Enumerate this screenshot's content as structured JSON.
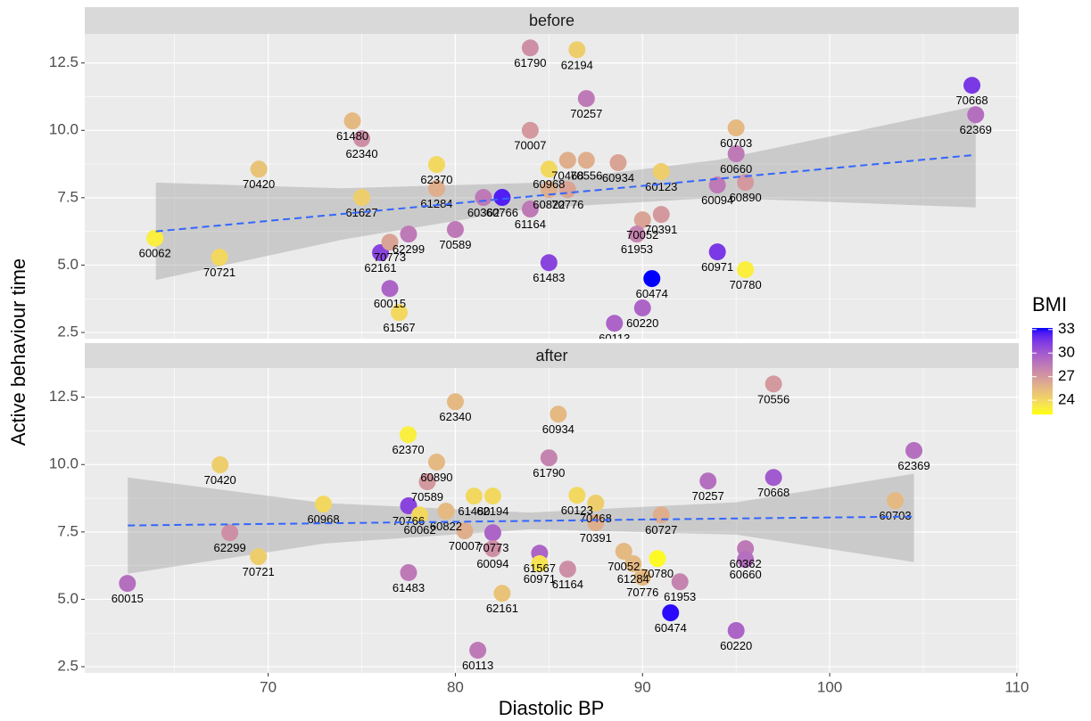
{
  "chart_data": {
    "type": "scatter",
    "x_label": "Diastolic BP",
    "y_label": "Active behaviour time",
    "xlim": [
      60.2,
      110.1
    ],
    "ylim": [
      2.27,
      13.58
    ],
    "xticks": [
      70,
      80,
      90,
      100,
      110
    ],
    "yticks": [
      2.5,
      {
        "value": 5,
        "label": "5.0"
      },
      7.5,
      {
        "value": 10,
        "label": "10.0"
      },
      12.5
    ],
    "grid": true,
    "color_legend": {
      "title": "BMI",
      "lim": [
        22.2,
        33.2
      ],
      "ticks": [
        24,
        27,
        30,
        33
      ],
      "low": "#FFFF00",
      "high": "#0000FF"
    },
    "fit_color": "#3366FF",
    "panels": [
      {
        "title": "before",
        "labels": [
          "60062",
          "70721",
          "70420",
          "61480",
          "62340",
          "61627",
          "62161",
          "70773",
          "62299",
          "60015",
          "61567",
          "62370",
          "61284",
          "70589",
          "60362",
          "60766",
          "61164",
          "61790",
          "62194",
          "70257",
          "70007",
          "60968",
          "70468",
          "70556",
          "60822",
          "70776",
          "60934",
          "61483",
          "60123",
          "70052",
          "70391",
          "61953",
          "60474",
          "60220",
          "60113",
          "60703",
          "60660",
          "60094",
          "60890",
          "60971",
          "70780",
          "70668",
          "62369"
        ],
        "x": [
          63.95,
          67.4,
          69.5,
          74.5,
          75.0,
          75.0,
          76.0,
          76.5,
          77.5,
          76.5,
          77.0,
          79.0,
          79.0,
          80.0,
          81.5,
          82.5,
          84.0,
          84.0,
          86.5,
          87.0,
          84.0,
          85.0,
          86.0,
          87.0,
          85.0,
          86.0,
          88.7,
          85.0,
          91.0,
          90.0,
          91.0,
          89.7,
          90.5,
          90.0,
          88.5,
          95.0,
          95.0,
          94.0,
          95.5,
          94.0,
          95.5,
          107.6,
          107.8
        ],
        "y": [
          6.0,
          5.29,
          8.56,
          10.35,
          9.69,
          7.51,
          5.46,
          5.85,
          6.15,
          4.13,
          3.24,
          8.73,
          7.84,
          6.32,
          7.51,
          7.51,
          7.08,
          13.06,
          12.99,
          11.18,
          10.0,
          8.56,
          8.89,
          8.89,
          7.8,
          7.8,
          8.8,
          5.09,
          8.47,
          6.68,
          6.88,
          6.15,
          4.5,
          3.41,
          2.84,
          10.09,
          9.13,
          7.97,
          8.07,
          5.49,
          4.83,
          11.67,
          10.58
        ],
        "bmi": [
          23,
          24,
          25,
          25.5,
          27.5,
          24.5,
          31,
          26.5,
          28.5,
          29.5,
          24,
          24,
          26,
          28.5,
          28.5,
          32.5,
          28.5,
          27.5,
          24.5,
          28.5,
          27,
          24,
          26,
          26,
          26,
          26.5,
          26.5,
          31,
          24.5,
          26.5,
          27,
          28,
          34,
          29.5,
          29.5,
          25.5,
          28.5,
          28.5,
          27,
          31.5,
          23,
          31.5,
          29
        ],
        "fit": {
          "x": [
            64,
            74,
            84,
            94,
            107.8
          ],
          "y": [
            6.25,
            6.9,
            7.55,
            8.2,
            9.09
          ],
          "lower": [
            4.45,
            5.95,
            7.1,
            7.5,
            7.14
          ],
          "upper": [
            8.06,
            7.85,
            8.05,
            8.9,
            10.9
          ]
        }
      },
      {
        "title": "after",
        "labels": [
          "60015",
          "62299",
          "70721",
          "70420",
          "60968",
          "62370",
          "60890",
          "70589",
          "70766",
          "60062",
          "60822",
          "70007",
          "70773",
          "60094",
          "61483",
          "60113",
          "62340",
          "61790",
          "60934",
          "61480",
          "62194",
          "61567",
          "60971",
          "61164",
          "62161",
          "60123",
          "70468",
          "70391",
          "60727",
          "70052",
          "61284",
          "70780",
          "70776",
          "61953",
          "60474",
          "60220",
          "60362",
          "60660",
          "70257",
          "70668",
          "70556",
          "62369",
          "60703"
        ],
        "x": [
          62.48,
          67.95,
          69.48,
          67.43,
          72.95,
          77.48,
          79.0,
          78.5,
          77.5,
          78.1,
          79.5,
          80.5,
          82.0,
          82.0,
          77.5,
          81.2,
          80.0,
          85.0,
          85.5,
          81.0,
          82.0,
          84.5,
          84.5,
          86.0,
          82.5,
          86.5,
          87.5,
          87.5,
          91.0,
          89.0,
          89.5,
          90.8,
          90.0,
          92.0,
          91.5,
          95.0,
          95.5,
          95.5,
          93.5,
          97.0,
          97.0,
          104.5,
          103.5
        ],
        "y": [
          5.59,
          7.47,
          6.58,
          9.99,
          8.53,
          11.11,
          10.09,
          9.36,
          8.47,
          8.13,
          8.27,
          7.54,
          7.47,
          6.88,
          5.99,
          3.11,
          12.33,
          10.25,
          11.87,
          8.83,
          8.83,
          6.71,
          6.32,
          6.12,
          5.22,
          8.86,
          8.57,
          7.84,
          8.13,
          6.78,
          6.32,
          6.51,
          5.82,
          5.65,
          4.5,
          3.84,
          6.88,
          6.48,
          9.39,
          9.52,
          12.99,
          10.52,
          8.66
        ],
        "bmi": [
          29,
          27.5,
          24.5,
          24.5,
          24,
          23,
          25.5,
          27,
          31,
          24,
          25.5,
          26,
          29.5,
          27.5,
          28.5,
          28.5,
          25.5,
          28,
          25.5,
          24,
          24,
          29.5,
          23.5,
          27.5,
          25,
          24,
          24.5,
          26,
          26,
          25.5,
          25.5,
          22.5,
          25.5,
          28,
          33,
          29.5,
          28.5,
          29,
          29,
          30,
          27,
          29,
          25.5
        ],
        "fit": {
          "x": [
            62.5,
            73,
            84,
            95,
            104.5
          ],
          "y": [
            7.74,
            7.82,
            7.91,
            8.0,
            8.07
          ],
          "lower": [
            5.95,
            7.07,
            7.6,
            7.4,
            6.38
          ],
          "upper": [
            9.52,
            8.57,
            8.22,
            8.6,
            9.66
          ]
        }
      }
    ]
  }
}
